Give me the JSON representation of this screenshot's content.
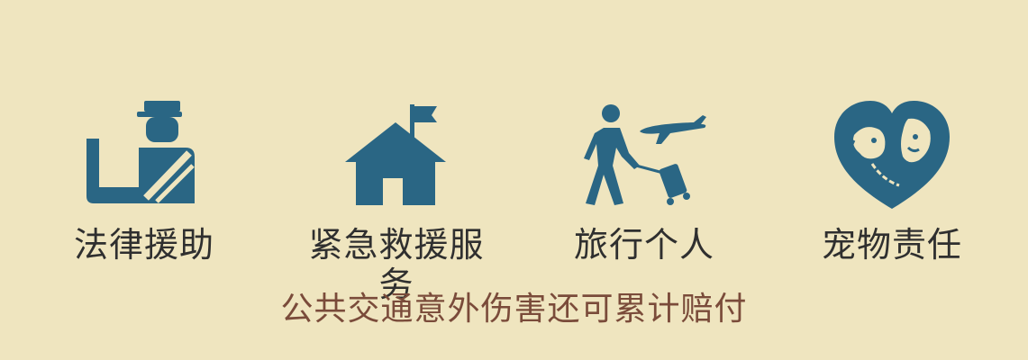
{
  "colors": {
    "background": "#efe5bf",
    "icon": "#2a6684",
    "label": "#2f2f2f",
    "note": "#7a4b3a"
  },
  "features": [
    {
      "icon": "legal-officer-icon",
      "label": "法律援助"
    },
    {
      "icon": "house-flag-icon",
      "label": "紧急救援服务"
    },
    {
      "icon": "traveler-plane-icon",
      "label": "旅行个人"
    },
    {
      "icon": "pet-heart-icon",
      "label": "宠物责任"
    }
  ],
  "note": "公共交通意外伤害还可累计赔付"
}
